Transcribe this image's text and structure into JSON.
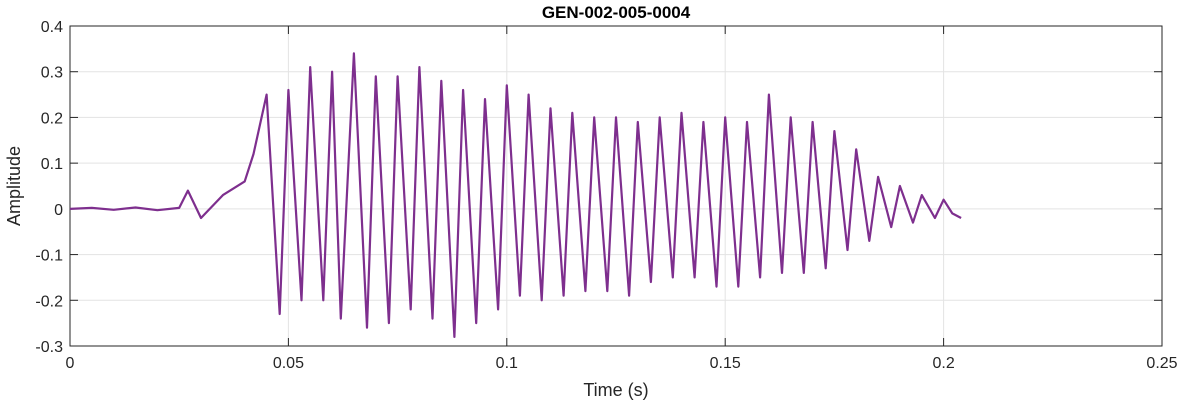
{
  "chart_data": {
    "type": "line",
    "title": "GEN-002-005-0004",
    "xlabel": "Time (s)",
    "ylabel": "Amplitude",
    "xlim": [
      0,
      0.25
    ],
    "ylim": [
      -0.3,
      0.4
    ],
    "xticks": [
      0,
      0.05,
      0.1,
      0.15,
      0.2,
      0.25
    ],
    "xtick_labels": [
      "0",
      "0.05",
      "0.1",
      "0.15",
      "0.2",
      "0.25"
    ],
    "yticks": [
      -0.3,
      -0.2,
      -0.1,
      0,
      0.1,
      0.2,
      0.3,
      0.4
    ],
    "ytick_labels": [
      "-0.3",
      "-0.2",
      "-0.1",
      "0",
      "0.1",
      "0.2",
      "0.3",
      "0.4"
    ],
    "grid": true,
    "line_color": "#7E2F8E",
    "series": [
      {
        "x": [
          0,
          0.005,
          0.01,
          0.015,
          0.02,
          0.025,
          0.027,
          0.03,
          0.035,
          0.04,
          0.042,
          0.045,
          0.048,
          0.05,
          0.053,
          0.055,
          0.058,
          0.06,
          0.062,
          0.065,
          0.068,
          0.07,
          0.073,
          0.075,
          0.078,
          0.08,
          0.083,
          0.085,
          0.088,
          0.09,
          0.093,
          0.095,
          0.098,
          0.1,
          0.103,
          0.105,
          0.108,
          0.11,
          0.113,
          0.115,
          0.118,
          0.12,
          0.123,
          0.125,
          0.128,
          0.13,
          0.133,
          0.135,
          0.138,
          0.14,
          0.143,
          0.145,
          0.148,
          0.15,
          0.153,
          0.155,
          0.158,
          0.16,
          0.163,
          0.165,
          0.168,
          0.17,
          0.173,
          0.175,
          0.178,
          0.18,
          0.183,
          0.185,
          0.188,
          0.19,
          0.193,
          0.195,
          0.198,
          0.2,
          0.202,
          0.204
        ],
        "values": [
          0,
          0.002,
          -0.002,
          0.003,
          -0.003,
          0.002,
          0.04,
          -0.02,
          0.03,
          0.06,
          0.12,
          0.25,
          -0.23,
          0.26,
          -0.2,
          0.31,
          -0.2,
          0.3,
          -0.24,
          0.34,
          -0.26,
          0.29,
          -0.25,
          0.29,
          -0.22,
          0.31,
          -0.24,
          0.28,
          -0.28,
          0.26,
          -0.25,
          0.24,
          -0.22,
          0.27,
          -0.19,
          0.25,
          -0.2,
          0.22,
          -0.19,
          0.21,
          -0.18,
          0.2,
          -0.18,
          0.2,
          -0.19,
          0.19,
          -0.16,
          0.2,
          -0.15,
          0.21,
          -0.15,
          0.19,
          -0.17,
          0.2,
          -0.17,
          0.19,
          -0.15,
          0.25,
          -0.14,
          0.2,
          -0.14,
          0.19,
          -0.13,
          0.17,
          -0.09,
          0.13,
          -0.07,
          0.07,
          -0.04,
          0.05,
          -0.03,
          0.03,
          -0.02,
          0.02,
          -0.01,
          -0.02
        ]
      }
    ]
  }
}
